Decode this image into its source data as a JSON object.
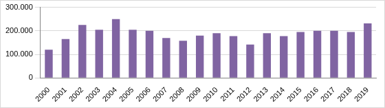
{
  "chart_data": {
    "type": "bar",
    "categories": [
      "2000",
      "2001",
      "2002",
      "2003",
      "2004",
      "2005",
      "2006",
      "2007",
      "2008",
      "2009",
      "2010",
      "2011",
      "2012",
      "2013",
      "2014",
      "2015",
      "2016",
      "2017",
      "2018",
      "2019"
    ],
    "values": [
      120000,
      165000,
      225000,
      205000,
      250000,
      205000,
      200000,
      170000,
      158000,
      180000,
      190000,
      178000,
      142000,
      190000,
      178000,
      195000,
      200000,
      200000,
      195000,
      232000
    ],
    "color": "#8064a2",
    "ylim": [
      0,
      300000
    ],
    "yticks": [
      0,
      {
        "value": 100000,
        "label": "100.000"
      },
      {
        "value": 200000,
        "label": "200.000"
      },
      {
        "value": 300000,
        "label": "300.000"
      }
    ],
    "grid": true
  }
}
